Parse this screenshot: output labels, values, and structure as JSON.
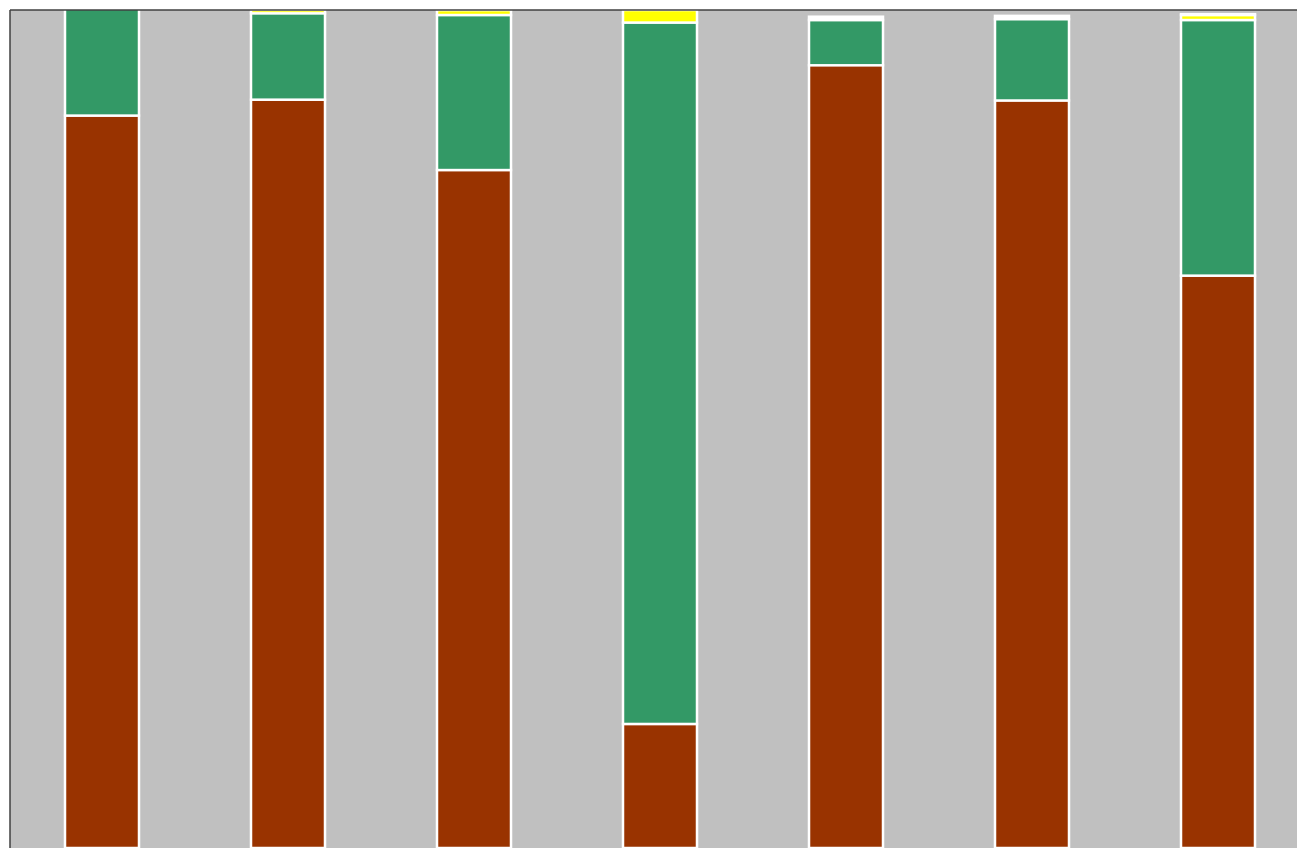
{
  "chart_data": {
    "type": "bar",
    "stacked": true,
    "percent_stacked": true,
    "ylim": [
      0,
      100
    ],
    "grid": false,
    "legend": "none",
    "categories": [
      "",
      "",
      "",
      "",
      "",
      "",
      ""
    ],
    "series": [
      {
        "color": "#993300",
        "values": [
          87.4,
          89.3,
          80.9,
          14.8,
          93.4,
          89.2,
          68.3
        ]
      },
      {
        "color": "#339966",
        "values": [
          12.7,
          10.3,
          18.5,
          83.7,
          5.4,
          9.7,
          30.5
        ]
      },
      {
        "color": "#ffff00",
        "values": [
          0.0,
          0.4,
          0.6,
          1.5,
          0.0,
          0.0,
          0.6
        ]
      },
      {
        "color": "#ffffff",
        "values": [
          0.4,
          0.0,
          0.4,
          0.0,
          0.4,
          0.4,
          0.1
        ]
      }
    ],
    "colors": {
      "plot_background": "#c0c0c0",
      "bar_edge": "#ffffff",
      "axis": "#404040"
    }
  }
}
